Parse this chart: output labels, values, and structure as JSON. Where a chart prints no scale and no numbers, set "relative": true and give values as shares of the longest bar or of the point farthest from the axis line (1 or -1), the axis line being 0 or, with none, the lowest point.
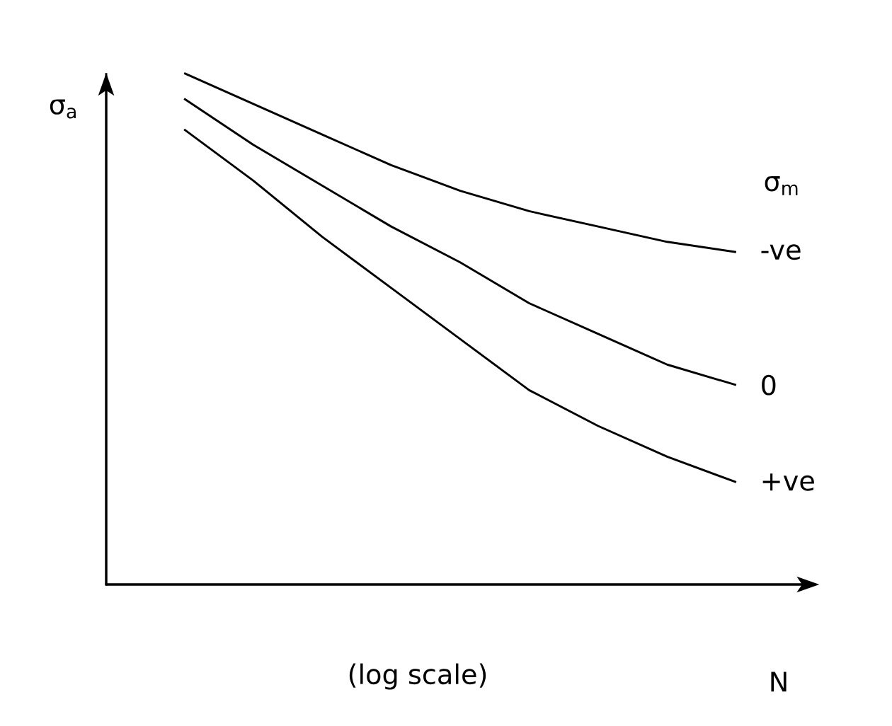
{
  "chart_data": {
    "type": "line",
    "relative": true,
    "ylabel": "σ$_{a}$",
    "xlabel": "N",
    "legend_title": "σ$_{m}$",
    "annotations": [
      "(log scale)"
    ],
    "categories": [
      null,
      null,
      null,
      null,
      null,
      null,
      null,
      null,
      null
    ],
    "legend": false,
    "marker": "none",
    "line_style": "solid",
    "series": [
      {
        "name": "-ve",
        "color": "#000000",
        "values": [
          1.0,
          0.94,
          0.88,
          0.82,
          0.77,
          0.73,
          0.7,
          0.67,
          0.65
        ]
      },
      {
        "name": "0",
        "color": "#000000",
        "values": [
          0.95,
          0.86,
          0.78,
          0.7,
          0.63,
          0.55,
          0.49,
          0.43,
          0.39
        ]
      },
      {
        "name": "+ve",
        "color": "#000000",
        "values": [
          0.89,
          0.79,
          0.68,
          0.58,
          0.48,
          0.38,
          0.31,
          0.25,
          0.2
        ]
      }
    ]
  }
}
